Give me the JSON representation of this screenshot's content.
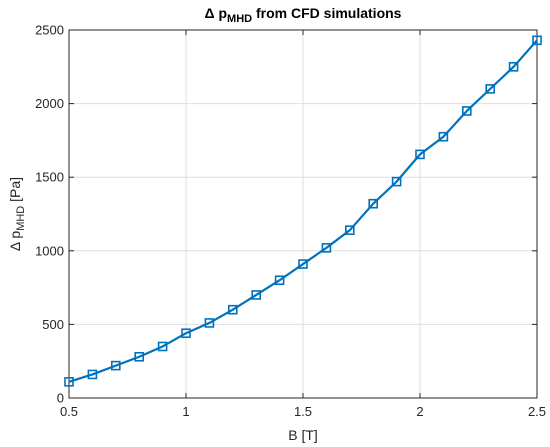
{
  "chart_data": {
    "type": "line",
    "title": {
      "prefix": "Δ p",
      "subscript": "MHD",
      "suffix": " from CFD simulations"
    },
    "xlabel": "B [T]",
    "ylabel": {
      "prefix": "Δ p",
      "subscript": "MHD",
      "suffix": " [Pa]"
    },
    "xlim": [
      0.5,
      2.5
    ],
    "ylim": [
      0,
      2500
    ],
    "xticks": [
      0.5,
      1,
      1.5,
      2,
      2.5
    ],
    "xtick_labels": [
      "0.5",
      "1",
      "1.5",
      "2",
      "2.5"
    ],
    "yticks": [
      0,
      500,
      1000,
      1500,
      2000,
      2500
    ],
    "ytick_labels": [
      "0",
      "500",
      "1000",
      "1500",
      "2000",
      "2500"
    ],
    "grid": true,
    "marker": "square",
    "line_color": "#0072bd",
    "series": [
      {
        "x": [
          0.5,
          0.6,
          0.7,
          0.8,
          0.9,
          1.0,
          1.1,
          1.2,
          1.3,
          1.4,
          1.5,
          1.6,
          1.7,
          1.8,
          1.9,
          2.0,
          2.1,
          2.2,
          2.3,
          2.4,
          2.5
        ],
        "y": [
          110,
          160,
          220,
          280,
          350,
          440,
          510,
          600,
          700,
          800,
          910,
          1020,
          1140,
          1320,
          1470,
          1655,
          1775,
          1950,
          2100,
          2250,
          2430
        ]
      }
    ]
  }
}
